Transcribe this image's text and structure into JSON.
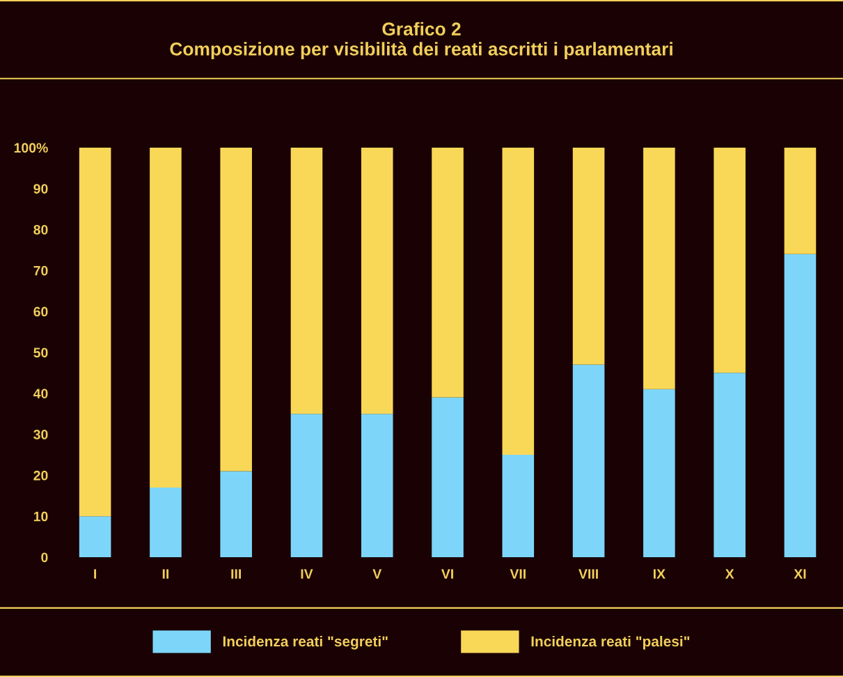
{
  "chart_data": {
    "type": "bar",
    "title": "Grafico 2\nComposizione per visibilità dei reati ascritti i parlamentari",
    "stacked": true,
    "categories": [
      "I",
      "II",
      "III",
      "IV",
      "V",
      "VI",
      "VII",
      "VIII",
      "IX",
      "X",
      "XI"
    ],
    "series": [
      {
        "name": "Incidenza reati \"segreti\"",
        "color": "#7dd6fa",
        "values": [
          10,
          17,
          21,
          35,
          35,
          39,
          25,
          47,
          41,
          45,
          74
        ]
      },
      {
        "name": "Incidenza reati \"palesi\"",
        "color": "#f9d858",
        "values": [
          90,
          83,
          79,
          65,
          65,
          61,
          75,
          53,
          59,
          55,
          26
        ]
      }
    ],
    "ylim": [
      0,
      100
    ],
    "yticks": [
      0,
      10,
      20,
      30,
      40,
      50,
      60,
      70,
      80,
      90,
      {
        "value": 100,
        "label": "100%"
      }
    ],
    "grid": false,
    "legend": "bottom"
  }
}
